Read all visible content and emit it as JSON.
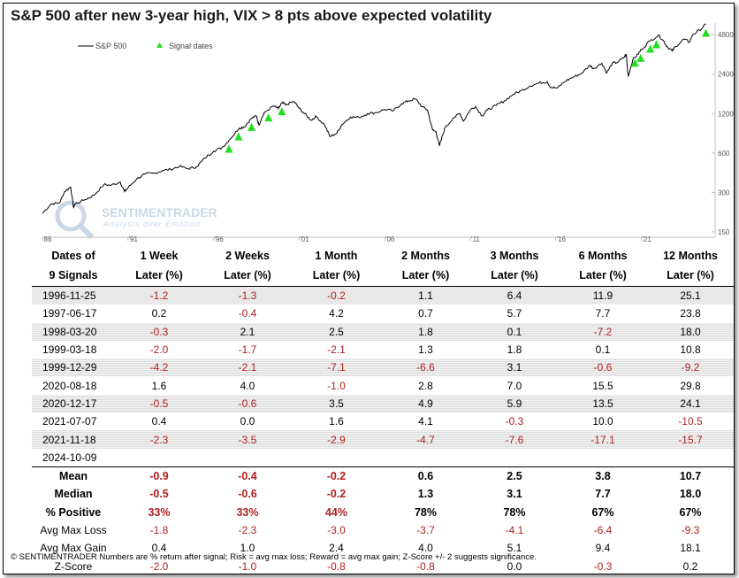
{
  "title": "S&P 500 after new 3-year high, VIX > 8 pts above expected volatility",
  "chart_data": {
    "type": "line",
    "y_scale": "log",
    "ylim": [
      150,
      5200
    ],
    "xlim": [
      1986,
      2025
    ],
    "y_ticks": [
      150,
      300,
      600,
      1200,
      2400,
      4800
    ],
    "x_ticks": [
      1986,
      1991,
      1996,
      2001,
      2006,
      2011,
      2016,
      2021
    ],
    "x_tick_labels": [
      "86",
      "'91",
      "'96",
      "'01",
      "'06",
      "'11",
      "'16",
      "'21"
    ],
    "legend": {
      "placement": "top-left",
      "line_label": "S&P 500",
      "marker_label": "Signal dates"
    },
    "watermark": {
      "text": "SENTIMENTRADER",
      "subtext": "Analysis over Emotion"
    },
    "series": [
      {
        "name": "S&P 500",
        "type": "line",
        "color": "#000000",
        "x": [
          1986.0,
          1986.5,
          1987.0,
          1987.3,
          1987.65,
          1987.82,
          1987.9,
          1988.5,
          1989.0,
          1989.6,
          1990.0,
          1990.55,
          1990.8,
          1991.0,
          1991.5,
          1992.0,
          1992.5,
          1993.0,
          1993.5,
          1994.0,
          1994.5,
          1995.0,
          1995.5,
          1996.0,
          1996.5,
          1996.9,
          1997.5,
          1997.8,
          1998.2,
          1998.5,
          1998.65,
          1998.8,
          1999.0,
          1999.5,
          1999.8,
          2000.0,
          2000.2,
          2000.7,
          2001.0,
          2001.3,
          2001.7,
          2002.0,
          2002.5,
          2002.8,
          2003.2,
          2003.5,
          2004.0,
          2004.5,
          2005.0,
          2005.5,
          2006.0,
          2006.5,
          2007.0,
          2007.4,
          2007.8,
          2008.2,
          2008.5,
          2008.8,
          2009.0,
          2009.2,
          2009.5,
          2010.0,
          2010.4,
          2010.6,
          2011.0,
          2011.3,
          2011.7,
          2012.0,
          2012.5,
          2013.0,
          2013.5,
          2014.0,
          2014.5,
          2015.0,
          2015.5,
          2015.7,
          2016.1,
          2016.5,
          2017.0,
          2017.5,
          2018.0,
          2018.2,
          2018.7,
          2018.98,
          2019.3,
          2019.6,
          2020.0,
          2020.12,
          2020.23,
          2020.5,
          2020.8,
          2021.0,
          2021.5,
          2022.0,
          2022.3,
          2022.5,
          2022.8,
          2023.0,
          2023.5,
          2023.8,
          2024.0,
          2024.4,
          2024.77
        ],
        "values": [
          208,
          245,
          250,
          305,
          330,
          230,
          245,
          265,
          285,
          345,
          340,
          360,
          305,
          325,
          380,
          415,
          420,
          440,
          450,
          475,
          455,
          470,
          550,
          620,
          660,
          750,
          930,
          950,
          1100,
          1150,
          980,
          1100,
          1230,
          1370,
          1310,
          1450,
          1400,
          1480,
          1320,
          1200,
          1070,
          1140,
          980,
          800,
          850,
          990,
          1130,
          1120,
          1200,
          1220,
          1290,
          1260,
          1430,
          1500,
          1550,
          1350,
          1280,
          900,
          870,
          680,
          920,
          1110,
          1200,
          1050,
          1280,
          1360,
          1150,
          1280,
          1380,
          1500,
          1680,
          1800,
          1950,
          2050,
          2100,
          1900,
          1880,
          2100,
          2270,
          2430,
          2800,
          2650,
          2900,
          2450,
          2900,
          2950,
          3230,
          3380,
          2300,
          3100,
          3400,
          3700,
          4300,
          4750,
          4300,
          3900,
          3600,
          3900,
          4450,
          4200,
          4800,
          5200,
          5750
        ]
      },
      {
        "name": "Signal dates",
        "type": "scatter",
        "color": "#22dd22",
        "x": [
          1996.9,
          1997.46,
          1998.22,
          1999.21,
          1999.99,
          2020.63,
          2020.96,
          2021.52,
          2021.88,
          2024.77
        ],
        "values": [
          750,
          930,
          1100,
          1300,
          1450,
          3400,
          3700,
          4350,
          4700,
          5750
        ]
      }
    ]
  },
  "table": {
    "headers": [
      [
        "Dates of",
        "9 Signals"
      ],
      [
        "1 Week",
        "Later (%)"
      ],
      [
        "2 Weeks",
        "Later (%)"
      ],
      [
        "1 Month",
        "Later (%)"
      ],
      [
        "2 Months",
        "Later (%)"
      ],
      [
        "3 Months",
        "Later (%)"
      ],
      [
        "6 Months",
        "Later (%)"
      ],
      [
        "12 Months",
        "Later (%)"
      ]
    ],
    "rows": [
      [
        "1996-11-25",
        "-1.2",
        "-1.3",
        "-0.2",
        "1.1",
        "6.4",
        "11.9",
        "25.1"
      ],
      [
        "1997-06-17",
        "0.2",
        "-0.4",
        "4.2",
        "0.7",
        "5.7",
        "7.7",
        "23.8"
      ],
      [
        "1998-03-20",
        "-0.3",
        "2.1",
        "2.5",
        "1.8",
        "0.1",
        "-7.2",
        "18.0"
      ],
      [
        "1999-03-18",
        "-2.0",
        "-1.7",
        "-2.1",
        "1.3",
        "1.8",
        "0.1",
        "10.8"
      ],
      [
        "1999-12-29",
        "-4.2",
        "-2.1",
        "-7.1",
        "-6.6",
        "3.1",
        "-0.6",
        "-9.2"
      ],
      [
        "2020-08-18",
        "1.6",
        "4.0",
        "-1.0",
        "2.8",
        "7.0",
        "15.5",
        "29.8"
      ],
      [
        "2020-12-17",
        "-0.5",
        "-0.6",
        "3.5",
        "4.9",
        "5.9",
        "13.5",
        "24.1"
      ],
      [
        "2021-07-07",
        "0.4",
        "0.0",
        "1.6",
        "4.1",
        "-0.3",
        "10.0",
        "-10.5"
      ],
      [
        "2021-11-18",
        "-2.3",
        "-3.5",
        "-2.9",
        "-4.7",
        "-7.6",
        "-17.1",
        "-15.7"
      ],
      [
        "2024-10-09",
        "",
        "",
        "",
        "",
        "",
        "",
        ""
      ]
    ],
    "summary": [
      {
        "label": "Mean",
        "bold": true,
        "values": [
          "-0.9",
          "-0.4",
          "-0.2",
          "0.6",
          "2.5",
          "3.8",
          "10.7"
        ]
      },
      {
        "label": "Median",
        "bold": true,
        "values": [
          "-0.5",
          "-0.6",
          "-0.2",
          "1.3",
          "3.1",
          "7.7",
          "18.0"
        ]
      },
      {
        "label": "% Positive",
        "bold": true,
        "values": [
          "33%",
          "33%",
          "44%",
          "78%",
          "78%",
          "67%",
          "67%"
        ],
        "neg_if_below": 50
      },
      {
        "label": "Avg Max Loss",
        "bold": false,
        "values": [
          "-1.8",
          "-2.3",
          "-3.0",
          "-3.7",
          "-4.1",
          "-6.4",
          "-9.3"
        ]
      },
      {
        "label": "Avg Max Gain",
        "bold": false,
        "values": [
          "0.4",
          "1.0",
          "2.4",
          "4.0",
          "5.1",
          "9.4",
          "18.1"
        ]
      },
      {
        "label": "Z-Score",
        "bold": false,
        "values": [
          "-2.0",
          "-1.0",
          "-0.8",
          "-0.8",
          "0.0",
          "-0.3",
          "0.2"
        ]
      }
    ]
  },
  "footer": "© SENTIMENTRADER  Numbers are % return after signal; Risk = avg max loss; Reward = avg max gain; Z-Score +/- 2 suggests significance.",
  "colors": {
    "negative": "#b02020",
    "signal": "#22dd22",
    "line": "#000000"
  }
}
